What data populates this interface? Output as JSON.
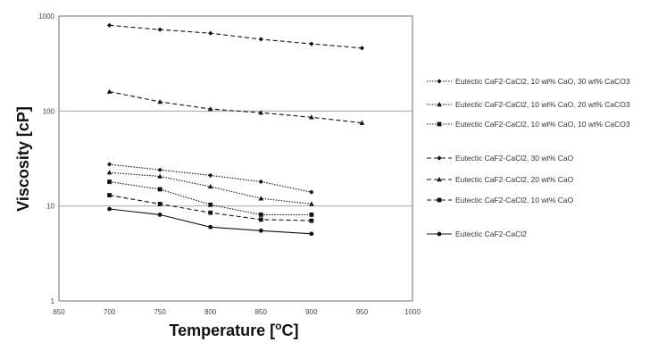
{
  "chart_data": {
    "type": "line",
    "title": "",
    "xlabel": "Temperature [oC]",
    "xlabel_main": "Temperature [",
    "xlabel_sup": "o",
    "xlabel_end": "C]",
    "ylabel": "Viscosity [cP]",
    "xlim": [
      650,
      1000
    ],
    "ylim": [
      1,
      1000
    ],
    "y_scale": "log",
    "x_ticks": [
      650,
      700,
      750,
      800,
      850,
      900,
      950,
      1000
    ],
    "y_ticks": [
      1,
      10,
      100,
      1000
    ],
    "grid": "horizontal major lines",
    "legend_position": "right",
    "series": [
      {
        "name": "Eutectic CaF2-CaCl2, 10 wt% CaO, 30 wt% CaCO3",
        "line_style": "dotted",
        "marker": "diamond",
        "points": [
          [
            700,
            27.5
          ],
          [
            750,
            24
          ],
          [
            800,
            21
          ],
          [
            850,
            18
          ],
          [
            900,
            14
          ]
        ]
      },
      {
        "name": "Eutectic CaF2-CaCl2, 10 wt% CaO, 20 wt% CaCO3",
        "line_style": "dotted",
        "marker": "triangle",
        "points": [
          [
            700,
            22.5
          ],
          [
            750,
            20.5
          ],
          [
            800,
            16
          ],
          [
            850,
            12
          ],
          [
            900,
            10.5
          ]
        ]
      },
      {
        "name": "Eutectic CaF2-CaCl2, 10 wt% CaO, 10 wt% CaCO3",
        "line_style": "dotted",
        "marker": "square",
        "points": [
          [
            700,
            18
          ],
          [
            750,
            15
          ],
          [
            800,
            10.3
          ],
          [
            850,
            8.1
          ],
          [
            900,
            8.1
          ]
        ]
      },
      {
        "name": "Eutectic CaF2-CaCl2, 30 wt% CaO",
        "line_style": "dashed",
        "marker": "diamond",
        "points": [
          [
            700,
            800
          ],
          [
            750,
            720
          ],
          [
            800,
            660
          ],
          [
            850,
            570
          ],
          [
            900,
            510
          ],
          [
            950,
            460
          ]
        ]
      },
      {
        "name": "Eutectic CaF2-CaCl2, 20 wt% CaO",
        "line_style": "dashed",
        "marker": "triangle",
        "points": [
          [
            700,
            160
          ],
          [
            750,
            125
          ],
          [
            800,
            105
          ],
          [
            850,
            96
          ],
          [
            900,
            86
          ],
          [
            950,
            75
          ]
        ]
      },
      {
        "name": "Eutectic CaF2-CaCl2, 10 wt% CaO",
        "line_style": "dashed",
        "marker": "square",
        "points": [
          [
            700,
            13
          ],
          [
            750,
            10.5
          ],
          [
            800,
            8.5
          ],
          [
            850,
            7.2
          ],
          [
            900,
            7
          ]
        ]
      },
      {
        "name": "Eutectic CaF2-CaCl2",
        "line_style": "solid",
        "marker": "circle",
        "points": [
          [
            700,
            9.3
          ],
          [
            750,
            8.1
          ],
          [
            800,
            6
          ],
          [
            850,
            5.5
          ],
          [
            900,
            5.1
          ]
        ]
      }
    ]
  }
}
